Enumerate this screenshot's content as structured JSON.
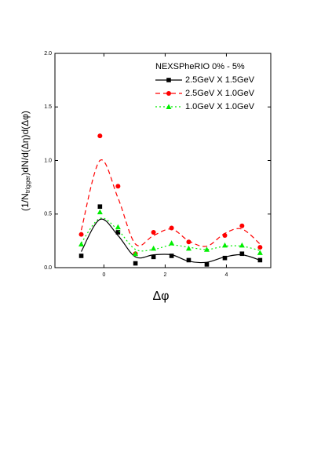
{
  "chart_data": {
    "type": "scatter",
    "legend_title": "NEXSPheRIO 0% - 5%",
    "x_label": "Δφ",
    "y_label": {
      "main": "(1/N",
      "sub": "trigger",
      "rest": ")dN/d(Δη)d(Δφ)"
    },
    "x": [
      -0.74,
      -0.13,
      0.46,
      1.03,
      1.62,
      2.21,
      2.77,
      3.36,
      3.95,
      4.51,
      5.1
    ],
    "series": [
      {
        "name": "2.5GeV X 1.5GeV",
        "color": "#000000",
        "marker": "square",
        "dash": "",
        "values": [
          0.11,
          0.57,
          0.33,
          0.04,
          0.1,
          0.11,
          0.07,
          0.03,
          0.09,
          0.13,
          0.07
        ],
        "fit_values": [
          0.15,
          0.45,
          0.3,
          0.1,
          0.12,
          0.12,
          0.06,
          0.05,
          0.1,
          0.12,
          0.07
        ]
      },
      {
        "name": "2.5GeV X 1.0GeV",
        "color": "#ff0000",
        "marker": "circle",
        "dash": "6 4",
        "values": [
          0.31,
          1.23,
          0.76,
          0.13,
          0.33,
          0.37,
          0.24,
          null,
          0.3,
          0.39,
          0.19
        ],
        "fit_values": [
          0.35,
          1.0,
          0.65,
          0.22,
          0.3,
          0.36,
          0.25,
          0.2,
          0.32,
          0.36,
          0.22
        ]
      },
      {
        "name": "1.0GeV X 1.0GeV",
        "color": "#00ee00",
        "marker": "triangle",
        "dash": "2 3",
        "values": [
          0.22,
          0.52,
          0.38,
          0.13,
          0.18,
          0.23,
          0.18,
          0.17,
          0.21,
          0.21,
          0.14
        ],
        "fit_values": [
          0.23,
          0.46,
          0.35,
          0.17,
          0.17,
          0.21,
          0.19,
          0.17,
          0.2,
          0.2,
          0.16
        ]
      }
    ],
    "xlim": [
      -1.6,
      5.45
    ],
    "ylim": [
      0,
      2
    ],
    "xticks": [
      0,
      2,
      4
    ],
    "yticks": [
      {
        "value": 0,
        "label": "0.0"
      },
      {
        "value": 0.5,
        "label": "0.5"
      },
      {
        "value": 1,
        "label": "1.0"
      },
      {
        "value": 1.5,
        "label": "1.5"
      },
      {
        "value": 2,
        "label": "2.0"
      }
    ]
  }
}
